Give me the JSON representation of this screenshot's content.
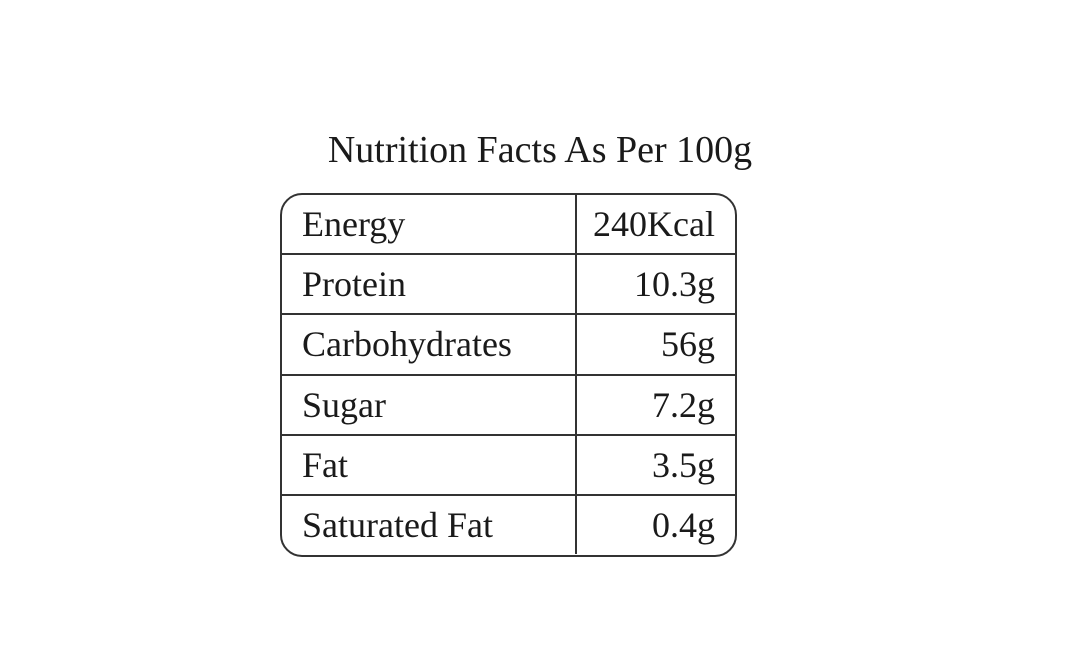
{
  "header": {
    "title": "Nutrition Facts As Per 100g"
  },
  "table": {
    "rows": [
      [
        "Energy",
        "240Kcal"
      ],
      [
        "Protein",
        "10.3g"
      ],
      [
        "Carbohydrates",
        "56g"
      ],
      [
        "Sugar",
        "7.2g"
      ],
      [
        "Fat",
        "3.5g"
      ],
      [
        "Saturated Fat",
        "0.4g"
      ]
    ]
  }
}
